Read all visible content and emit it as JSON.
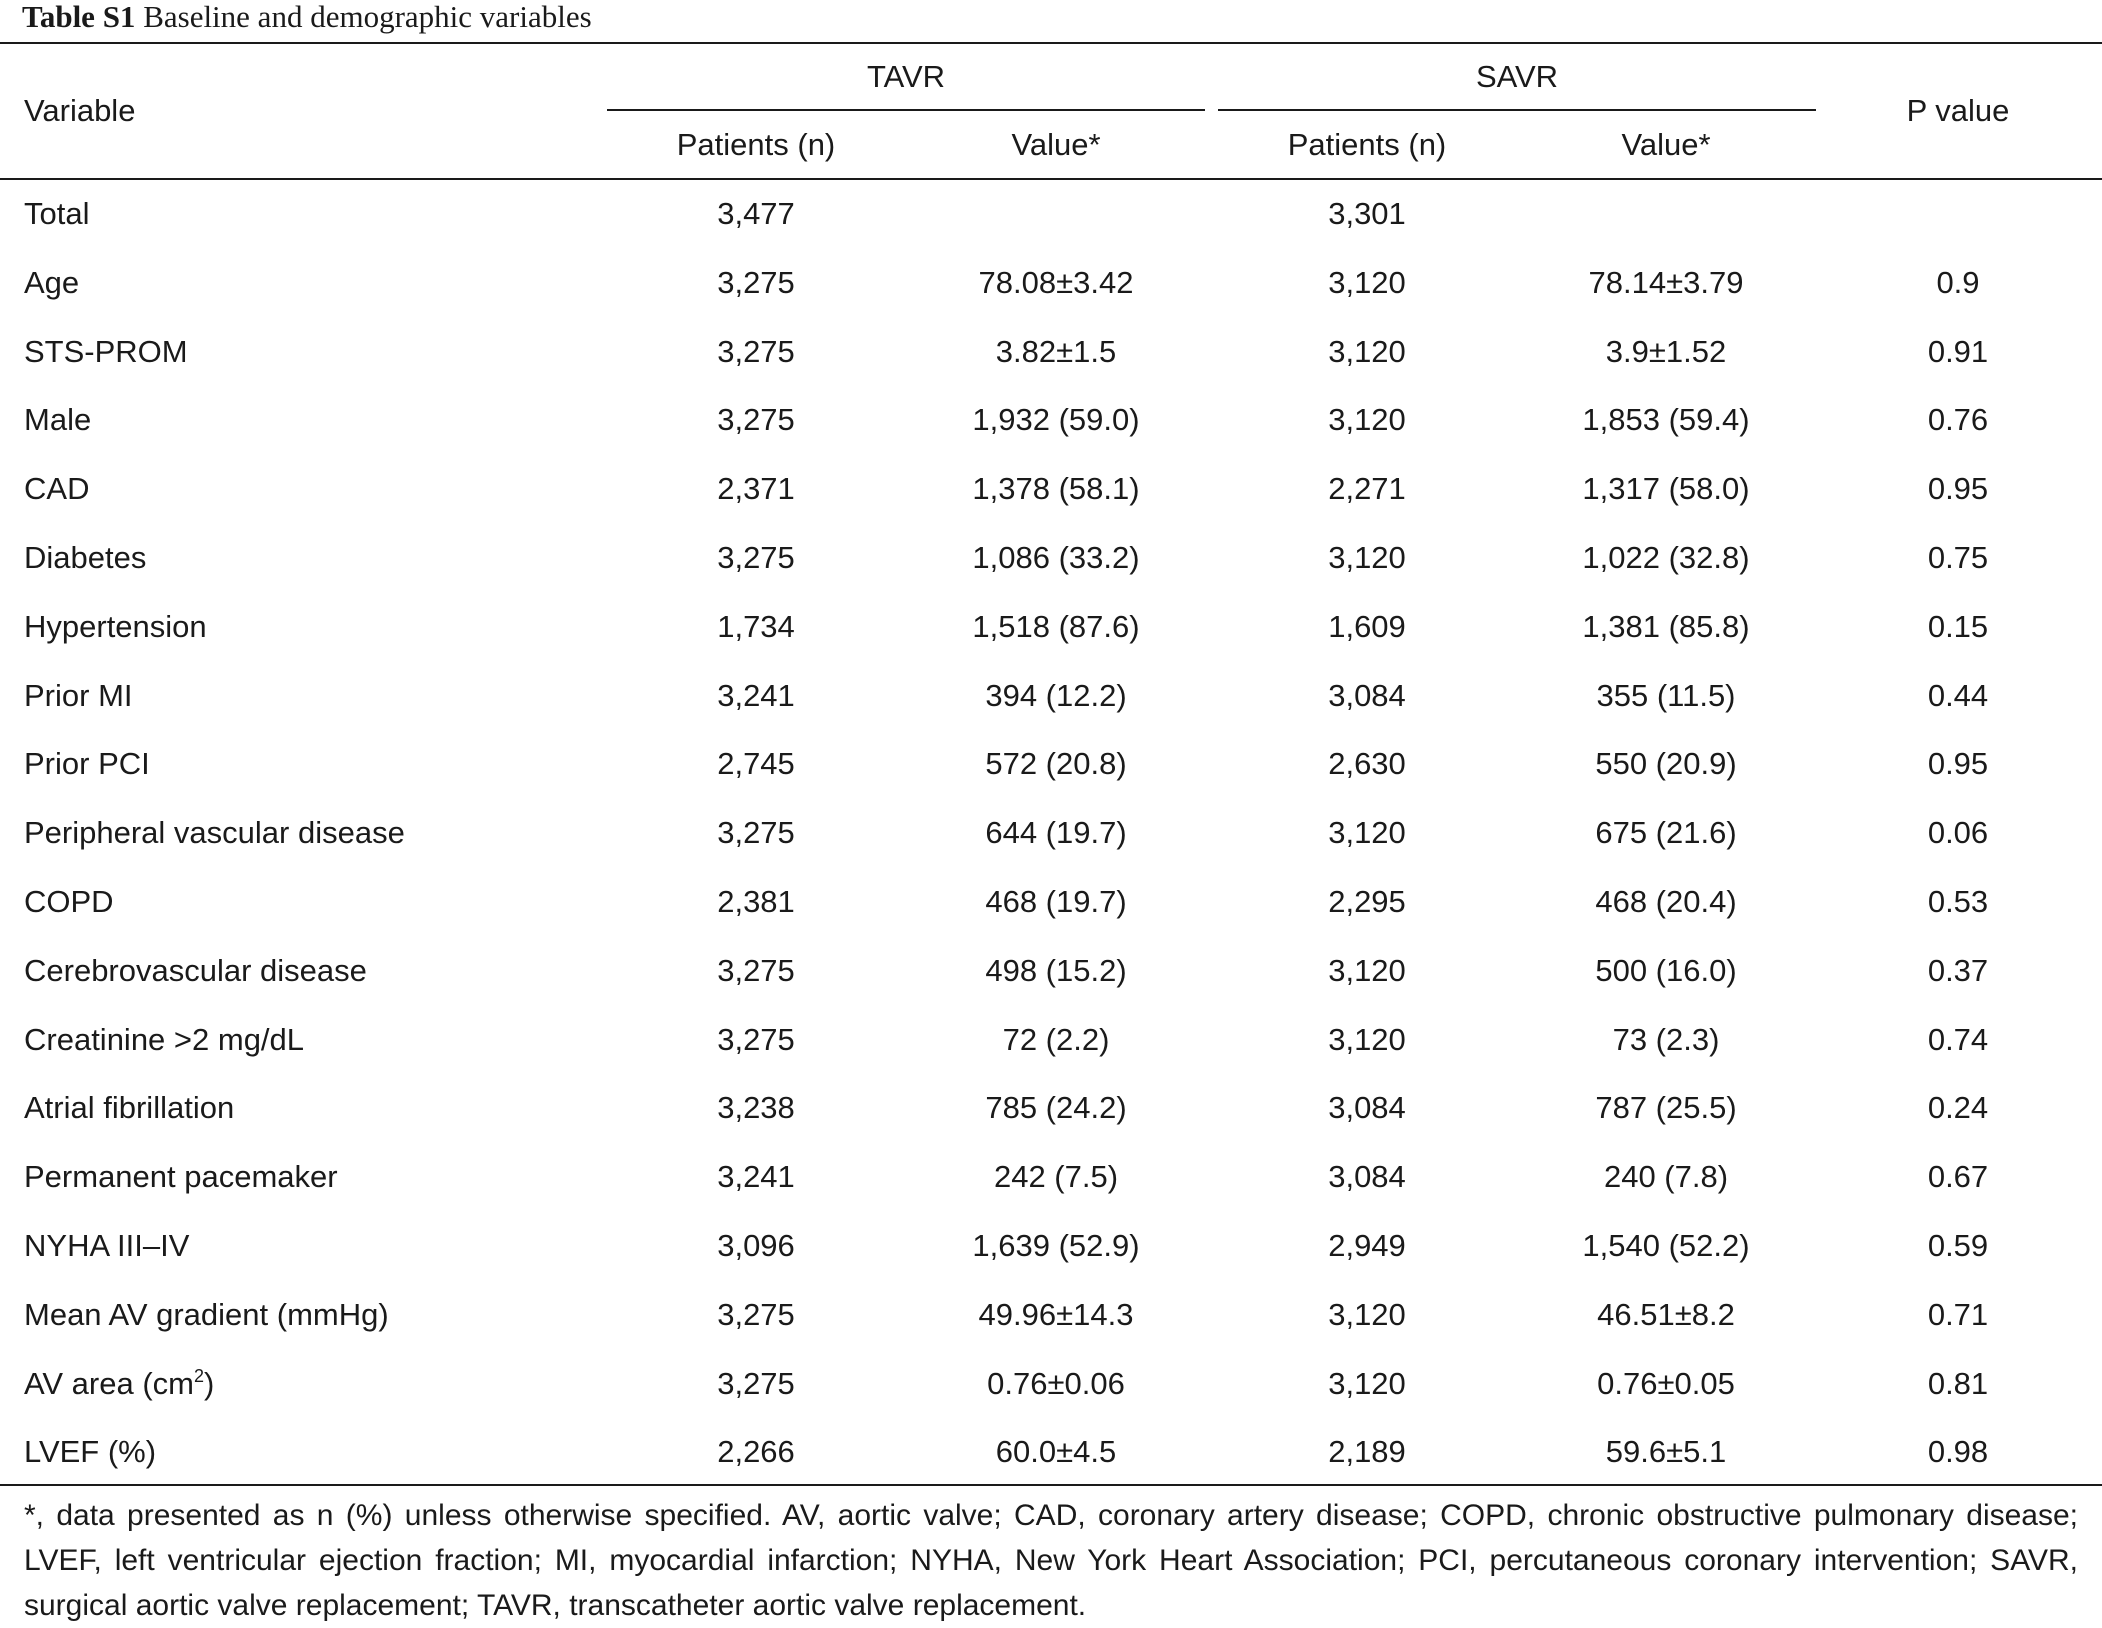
{
  "caption": {
    "label": "Table S1",
    "text": "Baseline and demographic variables"
  },
  "header": {
    "variable": "Variable",
    "group_tavr": "TAVR",
    "group_savr": "SAVR",
    "patients": "Patients (n)",
    "value": "Value*",
    "p_value": "P value"
  },
  "rows": [
    {
      "variable": "Total",
      "tavr_n": "3,477",
      "tavr_value": "",
      "savr_n": "3,301",
      "savr_value": "",
      "p": ""
    },
    {
      "variable": "Age",
      "tavr_n": "3,275",
      "tavr_value": "78.08±3.42",
      "savr_n": "3,120",
      "savr_value": "78.14±3.79",
      "p": "0.9"
    },
    {
      "variable": "STS-PROM",
      "tavr_n": "3,275",
      "tavr_value": "3.82±1.5",
      "savr_n": "3,120",
      "savr_value": "3.9±1.52",
      "p": "0.91"
    },
    {
      "variable": "Male",
      "tavr_n": "3,275",
      "tavr_value": "1,932 (59.0)",
      "savr_n": "3,120",
      "savr_value": "1,853 (59.4)",
      "p": "0.76"
    },
    {
      "variable": "CAD",
      "tavr_n": "2,371",
      "tavr_value": "1,378 (58.1)",
      "savr_n": "2,271",
      "savr_value": "1,317 (58.0)",
      "p": "0.95"
    },
    {
      "variable": "Diabetes",
      "tavr_n": "3,275",
      "tavr_value": "1,086 (33.2)",
      "savr_n": "3,120",
      "savr_value": "1,022 (32.8)",
      "p": "0.75"
    },
    {
      "variable": "Hypertension",
      "tavr_n": "1,734",
      "tavr_value": "1,518 (87.6)",
      "savr_n": "1,609",
      "savr_value": "1,381 (85.8)",
      "p": "0.15"
    },
    {
      "variable": "Prior MI",
      "tavr_n": "3,241",
      "tavr_value": "394 (12.2)",
      "savr_n": "3,084",
      "savr_value": "355 (11.5)",
      "p": "0.44"
    },
    {
      "variable": "Prior PCI",
      "tavr_n": "2,745",
      "tavr_value": "572 (20.8)",
      "savr_n": "2,630",
      "savr_value": "550 (20.9)",
      "p": "0.95"
    },
    {
      "variable": "Peripheral vascular disease",
      "tavr_n": "3,275",
      "tavr_value": "644 (19.7)",
      "savr_n": "3,120",
      "savr_value": "675 (21.6)",
      "p": "0.06"
    },
    {
      "variable": "COPD",
      "tavr_n": "2,381",
      "tavr_value": "468 (19.7)",
      "savr_n": "2,295",
      "savr_value": "468 (20.4)",
      "p": "0.53"
    },
    {
      "variable": "Cerebrovascular disease",
      "tavr_n": "3,275",
      "tavr_value": "498 (15.2)",
      "savr_n": "3,120",
      "savr_value": "500 (16.0)",
      "p": "0.37"
    },
    {
      "variable": "Creatinine >2 mg/dL",
      "tavr_n": "3,275",
      "tavr_value": "72 (2.2)",
      "savr_n": "3,120",
      "savr_value": "73 (2.3)",
      "p": "0.74"
    },
    {
      "variable": "Atrial fibrillation",
      "tavr_n": "3,238",
      "tavr_value": "785 (24.2)",
      "savr_n": "3,084",
      "savr_value": "787 (25.5)",
      "p": "0.24"
    },
    {
      "variable": "Permanent pacemaker",
      "tavr_n": "3,241",
      "tavr_value": "242 (7.5)",
      "savr_n": "3,084",
      "savr_value": "240 (7.8)",
      "p": "0.67"
    },
    {
      "variable": "NYHA III–IV",
      "tavr_n": "3,096",
      "tavr_value": "1,639 (52.9)",
      "savr_n": "2,949",
      "savr_value": "1,540 (52.2)",
      "p": "0.59"
    },
    {
      "variable": "Mean AV gradient (mmHg)",
      "tavr_n": "3,275",
      "tavr_value": "49.96±14.3",
      "savr_n": "3,120",
      "savr_value": "46.51±8.2",
      "p": "0.71"
    },
    {
      "variable": "AV area (cm",
      "variable_sup": "2",
      "variable_suffix": ")",
      "tavr_n": "3,275",
      "tavr_value": "0.76±0.06",
      "savr_n": "3,120",
      "savr_value": "0.76±0.05",
      "p": "0.81"
    },
    {
      "variable": "LVEF (%)",
      "tavr_n": "2,266",
      "tavr_value": "60.0±4.5",
      "savr_n": "2,189",
      "savr_value": "59.6±5.1",
      "p": "0.98"
    }
  ],
  "footnote": "*, data presented as n (%) unless otherwise specified. AV, aortic valve; CAD, coronary artery disease; COPD, chronic obstructive pulmonary disease; LVEF, left ventricular ejection fraction; MI, myocardial infarction; NYHA, New York Heart Association; PCI, percutaneous coronary intervention; SAVR, surgical aortic valve replacement; TAVR, transcatheter aortic valve replacement."
}
